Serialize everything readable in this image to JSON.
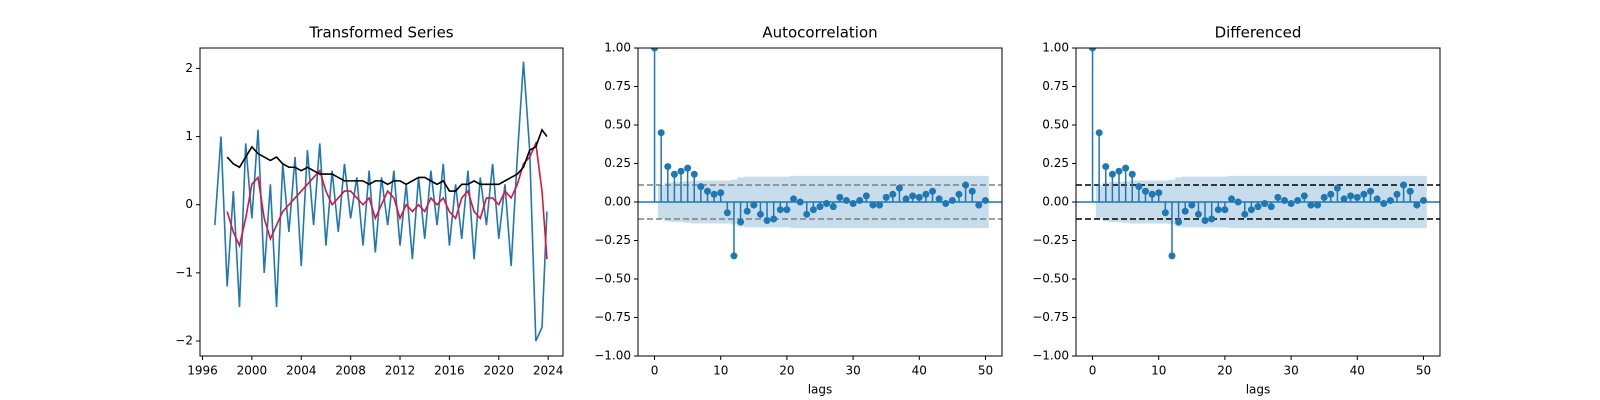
{
  "chart_data": [
    {
      "type": "line",
      "title": "Transformed Series",
      "x": [
        1997.0,
        1997.5,
        1998.0,
        1998.5,
        1999.0,
        1999.5,
        2000.0,
        2000.5,
        2001.0,
        2001.5,
        2002.0,
        2002.5,
        2003.0,
        2003.5,
        2004.0,
        2004.5,
        2005.0,
        2005.5,
        2006.0,
        2006.5,
        2007.0,
        2007.5,
        2008.0,
        2008.5,
        2009.0,
        2009.5,
        2010.0,
        2010.5,
        2011.0,
        2011.5,
        2012.0,
        2012.5,
        2013.0,
        2013.5,
        2014.0,
        2014.5,
        2015.0,
        2015.5,
        2016.0,
        2016.5,
        2017.0,
        2017.5,
        2018.0,
        2018.5,
        2019.0,
        2019.5,
        2020.0,
        2020.5,
        2021.0,
        2021.5,
        2022.0,
        2022.5,
        2023.0,
        2023.5,
        2023.9
      ],
      "series": [
        {
          "color": "#1f77b4",
          "values": [
            -0.3,
            1.0,
            -1.2,
            0.2,
            -1.5,
            0.9,
            -0.2,
            1.1,
            -1.0,
            0.3,
            -1.5,
            0.6,
            -0.4,
            0.7,
            -0.9,
            0.8,
            -0.3,
            0.9,
            -0.6,
            0.5,
            -0.4,
            0.6,
            -0.2,
            0.4,
            -0.6,
            0.5,
            -0.7,
            0.4,
            -0.3,
            0.5,
            -0.6,
            0.3,
            -0.8,
            0.4,
            -0.5,
            0.5,
            -0.3,
            0.6,
            -0.6,
            0.3,
            -0.5,
            0.5,
            -0.8,
            0.4,
            -0.3,
            0.6,
            -0.5,
            0.3,
            -0.9,
            0.7,
            2.1,
            0.8,
            -2.0,
            -1.8,
            -0.1
          ]
        },
        {
          "color": "#dc143c",
          "values": [
            null,
            null,
            -0.1,
            -0.4,
            -0.6,
            -0.2,
            0.3,
            0.4,
            -0.2,
            -0.5,
            -0.3,
            -0.1,
            0.0,
            0.1,
            0.2,
            0.3,
            0.4,
            0.5,
            0.2,
            0.0,
            0.1,
            0.2,
            0.2,
            0.1,
            0.0,
            0.1,
            -0.2,
            0.0,
            0.2,
            0.1,
            -0.2,
            0.0,
            -0.1,
            0.0,
            -0.1,
            0.1,
            0.0,
            0.1,
            -0.1,
            -0.2,
            0.1,
            0.2,
            -0.1,
            -0.2,
            0.1,
            0.1,
            0.0,
            0.2,
            0.1,
            0.3,
            0.6,
            0.7,
            0.9,
            0.2,
            -0.8
          ]
        },
        {
          "color": "#000000",
          "values": [
            null,
            null,
            0.7,
            0.6,
            0.55,
            0.7,
            0.85,
            0.75,
            0.7,
            0.65,
            0.7,
            0.6,
            0.55,
            0.55,
            0.5,
            0.55,
            0.5,
            0.45,
            0.45,
            0.45,
            0.4,
            0.35,
            0.35,
            0.35,
            0.35,
            0.3,
            0.35,
            0.35,
            0.3,
            0.35,
            0.35,
            0.3,
            0.35,
            0.4,
            0.4,
            0.35,
            0.3,
            0.35,
            0.2,
            0.2,
            0.3,
            0.3,
            0.35,
            0.3,
            0.3,
            0.3,
            0.3,
            0.35,
            0.4,
            0.45,
            0.55,
            0.8,
            0.85,
            1.1,
            1.0
          ]
        }
      ],
      "xlim": [
        1995.8,
        2025.2
      ],
      "xticks": [
        1996,
        2000,
        2004,
        2008,
        2012,
        2016,
        2020,
        2024
      ],
      "ylim": [
        -2.22,
        2.3
      ],
      "yticks": [
        {
          "value": -2,
          "label": "−2"
        },
        {
          "value": -1,
          "label": "−1"
        },
        0,
        1,
        2
      ]
    },
    {
      "type": "stem",
      "title": "Autocorrelation",
      "xlabel": "lags",
      "x": [
        0,
        1,
        2,
        3,
        4,
        5,
        6,
        7,
        8,
        9,
        10,
        11,
        12,
        13,
        14,
        15,
        16,
        17,
        18,
        19,
        20,
        21,
        22,
        23,
        24,
        25,
        26,
        27,
        28,
        29,
        30,
        31,
        32,
        33,
        34,
        35,
        36,
        37,
        38,
        39,
        40,
        41,
        42,
        43,
        44,
        45,
        46,
        47,
        48,
        49,
        50
      ],
      "series": [
        {
          "color": "#1f77b4",
          "values": [
            1.0,
            0.45,
            0.23,
            0.18,
            0.2,
            0.22,
            0.18,
            0.1,
            0.07,
            0.05,
            0.06,
            -0.07,
            -0.35,
            -0.13,
            -0.06,
            -0.02,
            -0.08,
            -0.12,
            -0.11,
            -0.05,
            -0.05,
            0.02,
            0.0,
            -0.08,
            -0.05,
            -0.03,
            -0.01,
            -0.03,
            0.03,
            0.01,
            -0.01,
            0.01,
            0.04,
            -0.02,
            -0.02,
            0.03,
            0.05,
            0.09,
            0.02,
            0.04,
            0.03,
            0.05,
            0.07,
            0.02,
            -0.01,
            0.01,
            0.05,
            0.11,
            0.07,
            -0.02,
            0.01
          ]
        }
      ],
      "band": {
        "color": "#1f77b4",
        "values": [
          null,
          0.11,
          0.125,
          0.13,
          0.13,
          0.135,
          0.14,
          0.14,
          0.14,
          0.14,
          0.14,
          0.14,
          0.145,
          0.16,
          0.165,
          0.165,
          0.165,
          0.165,
          0.165,
          0.165,
          0.165,
          0.17,
          0.17,
          0.17,
          0.17,
          0.17,
          0.17,
          0.17,
          0.17,
          0.17,
          0.17,
          0.17,
          0.17,
          0.17,
          0.17,
          0.17,
          0.17,
          0.17,
          0.17,
          0.17,
          0.17,
          0.17,
          0.17,
          0.17,
          0.17,
          0.17,
          0.17,
          0.17,
          0.17,
          0.17,
          0.17
        ]
      },
      "hlines": {
        "color": "#808080",
        "values": [
          0.11,
          -0.11
        ]
      },
      "xlim": [
        -2.5,
        52.5
      ],
      "xticks": [
        0,
        10,
        20,
        30,
        40,
        50
      ],
      "ylim": [
        -1,
        1
      ],
      "yticks": [
        {
          "value": -1,
          "label": "−1.00"
        },
        {
          "value": -0.75,
          "label": "−0.75"
        },
        {
          "value": -0.5,
          "label": "−0.50"
        },
        {
          "value": -0.25,
          "label": "−0.25"
        },
        {
          "value": 0,
          "label": "0.00"
        },
        {
          "value": 0.25,
          "label": "0.25"
        },
        {
          "value": 0.5,
          "label": "0.50"
        },
        {
          "value": 0.75,
          "label": "0.75"
        },
        {
          "value": 1,
          "label": "1.00"
        }
      ]
    },
    {
      "type": "stem",
      "title": "Differenced",
      "xlabel": "lags",
      "x": [
        0,
        1,
        2,
        3,
        4,
        5,
        6,
        7,
        8,
        9,
        10,
        11,
        12,
        13,
        14,
        15,
        16,
        17,
        18,
        19,
        20,
        21,
        22,
        23,
        24,
        25,
        26,
        27,
        28,
        29,
        30,
        31,
        32,
        33,
        34,
        35,
        36,
        37,
        38,
        39,
        40,
        41,
        42,
        43,
        44,
        45,
        46,
        47,
        48,
        49,
        50
      ],
      "series": [
        {
          "color": "#1f77b4",
          "values": [
            1.0,
            0.45,
            0.23,
            0.18,
            0.2,
            0.22,
            0.18,
            0.1,
            0.07,
            0.05,
            0.06,
            -0.07,
            -0.35,
            -0.13,
            -0.06,
            -0.02,
            -0.08,
            -0.12,
            -0.11,
            -0.05,
            -0.05,
            0.02,
            0.0,
            -0.08,
            -0.05,
            -0.03,
            -0.01,
            -0.03,
            0.03,
            0.01,
            -0.01,
            0.01,
            0.04,
            -0.02,
            -0.02,
            0.03,
            0.05,
            0.09,
            0.02,
            0.04,
            0.03,
            0.05,
            0.07,
            0.02,
            -0.01,
            0.01,
            0.05,
            0.11,
            0.07,
            -0.02,
            0.01
          ]
        }
      ],
      "band": {
        "color": "#1f77b4",
        "values": [
          null,
          0.11,
          0.125,
          0.13,
          0.13,
          0.135,
          0.14,
          0.14,
          0.14,
          0.14,
          0.14,
          0.14,
          0.145,
          0.16,
          0.165,
          0.165,
          0.165,
          0.165,
          0.165,
          0.165,
          0.165,
          0.17,
          0.17,
          0.17,
          0.17,
          0.17,
          0.17,
          0.17,
          0.17,
          0.17,
          0.17,
          0.17,
          0.17,
          0.17,
          0.17,
          0.17,
          0.17,
          0.17,
          0.17,
          0.17,
          0.17,
          0.17,
          0.17,
          0.17,
          0.17,
          0.17,
          0.17,
          0.17,
          0.17,
          0.17,
          0.17
        ]
      },
      "hlines": {
        "color": "#000000",
        "values": [
          0.11,
          -0.11
        ]
      },
      "xlim": [
        -2.5,
        52.5
      ],
      "xticks": [
        0,
        10,
        20,
        30,
        40,
        50
      ],
      "ylim": [
        -1,
        1
      ],
      "yticks": [
        {
          "value": -1,
          "label": "−1.00"
        },
        {
          "value": -0.75,
          "label": "−0.75"
        },
        {
          "value": -0.5,
          "label": "−0.50"
        },
        {
          "value": -0.25,
          "label": "−0.25"
        },
        {
          "value": 0,
          "label": "0.00"
        },
        {
          "value": 0.25,
          "label": "0.25"
        },
        {
          "value": 0.5,
          "label": "0.50"
        },
        {
          "value": 0.75,
          "label": "0.75"
        },
        {
          "value": 1,
          "label": "1.00"
        }
      ]
    }
  ]
}
